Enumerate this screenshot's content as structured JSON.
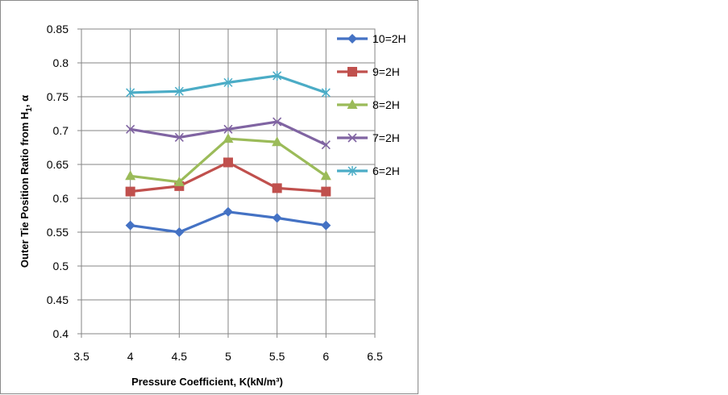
{
  "chart_data": {
    "type": "line",
    "x": [
      4,
      4.5,
      5,
      5.5,
      6
    ],
    "xlim": [
      3.5,
      6.5
    ],
    "xticks": [
      3.5,
      4,
      4.5,
      5,
      5.5,
      6,
      6.5
    ],
    "ylim": [
      0.4,
      0.85
    ],
    "yticks": [
      0.4,
      0.45,
      0.5,
      0.55,
      0.6,
      0.65,
      0.7,
      0.75,
      0.8,
      0.85
    ],
    "xlabel": "Pressure Coefficient, K(kN/m³)",
    "ylabel_prefix": "Outer Tie Position Ratio from H",
    "ylabel_sub": "1",
    "ylabel_suffix": ", α",
    "grid": true,
    "legend_position": "right",
    "series": [
      {
        "name": "10=2H",
        "color": "#4472C4",
        "marker": "diamond",
        "values": [
          0.56,
          0.55,
          0.58,
          0.571,
          0.56
        ]
      },
      {
        "name": "9=2H",
        "color": "#C0504D",
        "marker": "square",
        "values": [
          0.61,
          0.618,
          0.653,
          0.615,
          0.61
        ]
      },
      {
        "name": "8=2H",
        "color": "#9BBB59",
        "marker": "triangle",
        "values": [
          0.633,
          0.624,
          0.688,
          0.683,
          0.633
        ]
      },
      {
        "name": "7=2H",
        "color": "#8064A2",
        "marker": "x",
        "values": [
          0.702,
          0.69,
          0.702,
          0.713,
          0.679
        ]
      },
      {
        "name": "6=2H",
        "color": "#4BACC6",
        "marker": "star",
        "values": [
          0.756,
          0.758,
          0.771,
          0.781,
          0.756
        ]
      }
    ]
  }
}
